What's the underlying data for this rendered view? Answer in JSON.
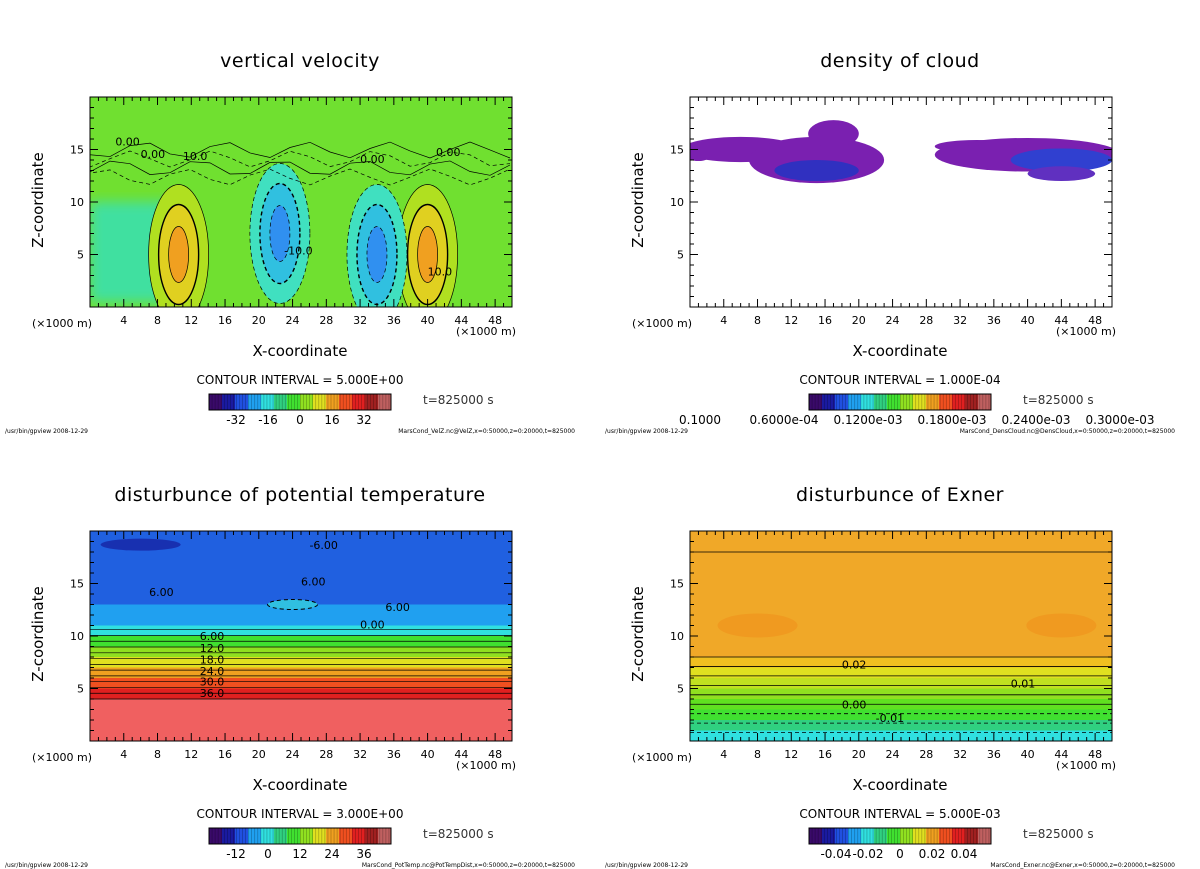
{
  "footer_left": "/usr/bin/gpview  2008-12-29",
  "chart_data": [
    {
      "type": "heatmap",
      "title": "vertical velocity",
      "xlabel": "X-coordinate",
      "ylabel": "Z-coordinate",
      "x_unit": "(×1000 m)",
      "xlim": [
        0,
        50
      ],
      "ylim": [
        0,
        20
      ],
      "xticks": [
        "4",
        "8",
        "12",
        "16",
        "20",
        "24",
        "28",
        "32",
        "36",
        "40",
        "44",
        "48"
      ],
      "yticks": [
        "5",
        "10",
        "15"
      ],
      "contour_interval": "CONTOUR INTERVAL = 5.000E+00",
      "colorbar_ticks": [
        "-32",
        "-16",
        "0",
        "16",
        "32"
      ],
      "clim": [
        -40,
        40
      ],
      "contour_labels": [
        "0.00",
        "0.00",
        "10.0",
        "-10.0",
        "0.00",
        "0.00",
        "10.0"
      ],
      "features": [
        {
          "x": 10.5,
          "z": 5,
          "value": 25
        },
        {
          "x": 40,
          "z": 5,
          "value": 25
        },
        {
          "x": 22.5,
          "z": 7,
          "value": -15
        },
        {
          "x": 34,
          "z": 5,
          "value": -15
        }
      ],
      "time": "t=825000 s",
      "source": "MarsCond_VelZ.nc@VelZ,x=0:50000,z=0:20000,t=825000"
    },
    {
      "type": "heatmap",
      "title": "density of cloud",
      "xlabel": "X-coordinate",
      "ylabel": "Z-coordinate",
      "x_unit": "(×1000 m)",
      "xlim": [
        0,
        50
      ],
      "ylim": [
        0,
        20
      ],
      "xticks": [
        "4",
        "8",
        "12",
        "16",
        "20",
        "24",
        "28",
        "32",
        "36",
        "40",
        "44",
        "48"
      ],
      "yticks": [
        "5",
        "10",
        "15"
      ],
      "contour_interval": "CONTOUR INTERVAL = 1.000E-04",
      "colorbar_ticks": [
        "0.1000",
        "0.6000e-04",
        "0.1200e-03",
        "0.1800e-03",
        "0.2400e-03",
        "0.3000e-03"
      ],
      "time": "t=825000 s",
      "source": "MarsCond_DensCloud.nc@DensCloud,x=0:50000,z=0:20000,t=825000"
    },
    {
      "type": "heatmap",
      "title": "disturbunce of potential temperature",
      "xlabel": "X-coordinate",
      "ylabel": "Z-coordinate",
      "x_unit": "(×1000 m)",
      "xlim": [
        0,
        50
      ],
      "ylim": [
        0,
        20
      ],
      "xticks": [
        "4",
        "8",
        "12",
        "16",
        "20",
        "24",
        "28",
        "32",
        "36",
        "40",
        "44",
        "48"
      ],
      "yticks": [
        "5",
        "10",
        "15"
      ],
      "contour_interval": "CONTOUR INTERVAL = 3.000E+00",
      "colorbar_ticks": [
        "-12",
        "0",
        "12",
        "24",
        "36"
      ],
      "contour_labels": [
        "6.00",
        "12.0",
        "18.0",
        "24.0",
        "30.0",
        "36.0",
        "0.00",
        "6.00",
        "6.00",
        "6.00",
        "-6.00"
      ],
      "time": "t=825000 s",
      "source": "MarsCond_PotTemp.nc@PotTempDist,x=0:50000,z=0:20000,t=825000"
    },
    {
      "type": "heatmap",
      "title": "disturbunce of Exner",
      "xlabel": "X-coordinate",
      "ylabel": "Z-coordinate",
      "x_unit": "(×1000 m)",
      "xlim": [
        0,
        50
      ],
      "ylim": [
        0,
        20
      ],
      "xticks": [
        "4",
        "8",
        "12",
        "16",
        "20",
        "24",
        "28",
        "32",
        "36",
        "40",
        "44",
        "48"
      ],
      "yticks": [
        "5",
        "10",
        "15"
      ],
      "contour_interval": "CONTOUR INTERVAL = 5.000E-03",
      "colorbar_ticks": [
        "-0.04",
        "-0.02",
        "0",
        "0.02",
        "0.04"
      ],
      "contour_labels": [
        "0.02",
        "0.01",
        "0.00",
        "-0.01"
      ],
      "time": "t=825000 s",
      "source": "MarsCond_Exner.nc@Exner,x=0:50000,z=0:20000,t=825000"
    }
  ]
}
